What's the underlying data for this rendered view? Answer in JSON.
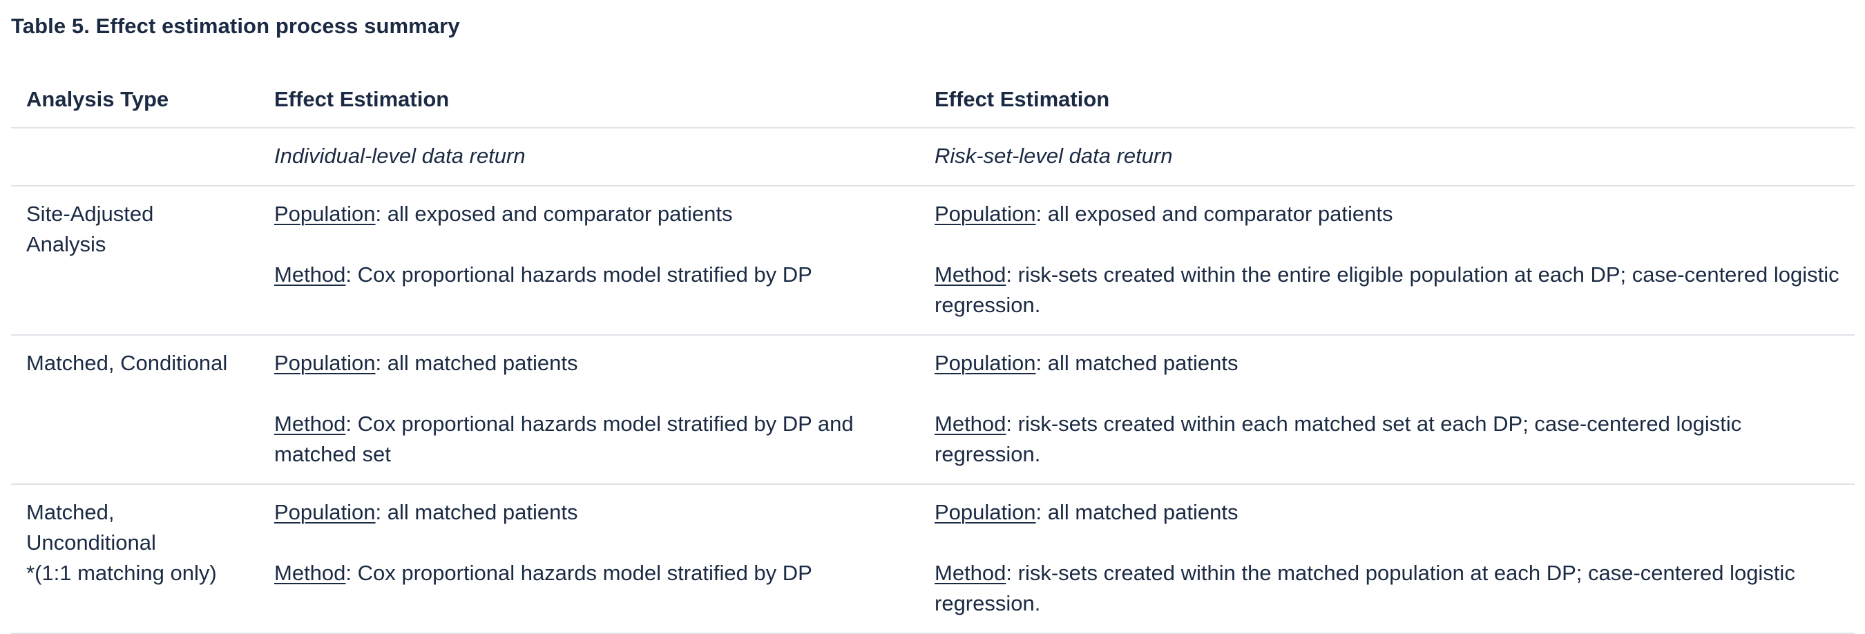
{
  "caption": "Table 5. Effect estimation process summary",
  "headers": [
    "Analysis Type",
    "Effect Estimation",
    "Effect Estimation"
  ],
  "subheaders": [
    "",
    "Individual-level data return",
    "Risk-set-level data return"
  ],
  "rows": [
    {
      "type_lines": [
        "Site-Adjusted",
        "Analysis"
      ],
      "individual": {
        "population_term": "Population",
        "population_text": ": all exposed and comparator patients",
        "method_term": "Method",
        "method_text": ": Cox proportional hazards model stratified by DP"
      },
      "riskset": {
        "population_term": "Population",
        "population_text": ": all exposed and comparator patients",
        "method_term": "Method",
        "method_text": ": risk-sets created within the entire eligible population at each DP; case-centered logistic regression."
      }
    },
    {
      "type_lines": [
        "Matched, Conditional"
      ],
      "individual": {
        "population_term": "Population",
        "population_text": ": all matched patients",
        "method_term": "Method",
        "method_text": ": Cox proportional hazards model stratified by DP and matched set"
      },
      "riskset": {
        "population_term": "Population",
        "population_text": ": all matched patients",
        "method_term": "Method",
        "method_text": ": risk-sets created within each matched set at each DP; case-centered logistic regression."
      }
    },
    {
      "type_lines": [
        "Matched,",
        "Unconditional",
        "*(1:1 matching only)"
      ],
      "individual": {
        "population_term": "Population",
        "population_text": ": all matched patients",
        "method_term": "Method",
        "method_text": ": Cox proportional hazards model stratified by DP"
      },
      "riskset": {
        "population_term": "Population",
        "population_text": ": all matched patients",
        "method_term": "Method",
        "method_text": ": risk-sets created within the matched population at each DP; case-centered logistic regression."
      }
    }
  ]
}
